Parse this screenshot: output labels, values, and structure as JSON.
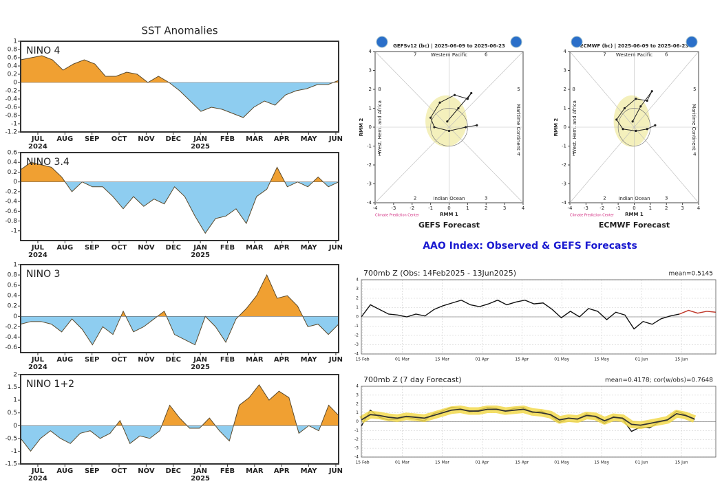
{
  "aao_title": "AAO Index: Observed & GEFS Forecasts",
  "chart_data": [
    {
      "type": "area",
      "title": "SST Anomalies",
      "label": "NINO 4",
      "values": [
        0.55,
        0.6,
        0.65,
        0.55,
        0.3,
        0.45,
        0.55,
        0.45,
        0.15,
        0.15,
        0.25,
        0.2,
        0.0,
        0.15,
        0.0,
        -0.2,
        -0.45,
        -0.7,
        -0.6,
        -0.65,
        -0.75,
        -0.85,
        -0.6,
        -0.45,
        -0.55,
        -0.3,
        -0.2,
        -0.15,
        -0.05,
        -0.05,
        0.05
      ],
      "ylim": [
        -1.2,
        1
      ],
      "yticks": [
        1,
        0.8,
        0.6,
        0.4,
        0.2,
        0,
        -0.2,
        -0.4,
        -0.6,
        -0.8,
        -1,
        -1.2
      ],
      "xticks": [
        "JUL",
        "AUG",
        "SEP",
        "OCT",
        "NOV",
        "DEC",
        "JAN",
        "FEB",
        "MAR",
        "APR",
        "MAY",
        "JUN"
      ],
      "years": [
        "2024",
        "2025"
      ],
      "colors": {
        "positive": "#f0a032",
        "negative": "#8ecdf0"
      }
    },
    {
      "type": "area",
      "label": "NINO 3.4",
      "values": [
        0.25,
        0.4,
        0.35,
        0.3,
        0.1,
        -0.2,
        0,
        -0.1,
        -0.1,
        -0.3,
        -0.55,
        -0.3,
        -0.5,
        -0.35,
        -0.45,
        -0.1,
        -0.3,
        -0.7,
        -1.05,
        -0.75,
        -0.7,
        -0.55,
        -0.85,
        -0.3,
        -0.15,
        0.3,
        -0.1,
        0,
        -0.1,
        0.1,
        -0.1,
        0
      ],
      "ylim": [
        -1.2,
        0.6
      ],
      "yticks": [
        0.6,
        0.4,
        0.2,
        0,
        -0.2,
        -0.4,
        -0.6,
        -0.8,
        -1
      ],
      "xticks": [
        "JUL",
        "AUG",
        "SEP",
        "OCT",
        "NOV",
        "DEC",
        "JAN",
        "FEB",
        "MAR",
        "APR",
        "MAY",
        "JUN"
      ],
      "years": [
        "2024",
        "2025"
      ],
      "colors": {
        "positive": "#f0a032",
        "negative": "#8ecdf0"
      }
    },
    {
      "type": "area",
      "label": "NINO 3",
      "values": [
        -0.15,
        -0.1,
        -0.1,
        -0.15,
        -0.3,
        -0.05,
        -0.25,
        -0.55,
        -0.2,
        -0.35,
        0.1,
        -0.3,
        -0.2,
        -0.05,
        0.1,
        -0.35,
        -0.45,
        -0.55,
        0,
        -0.2,
        -0.5,
        -0.05,
        0.15,
        0.4,
        0.8,
        0.35,
        0.4,
        0.2,
        -0.2,
        -0.15,
        -0.35,
        -0.15
      ],
      "ylim": [
        -0.7,
        1
      ],
      "yticks": [
        1,
        0.8,
        0.6,
        0.4,
        0.2,
        0,
        -0.2,
        -0.4,
        -0.6
      ],
      "xticks": [
        "JUL",
        "AUG",
        "SEP",
        "OCT",
        "NOV",
        "DEC",
        "JAN",
        "FEB",
        "MAR",
        "APR",
        "MAY",
        "JUN"
      ],
      "years": [
        "2024",
        "2025"
      ],
      "colors": {
        "positive": "#f0a032",
        "negative": "#8ecdf0"
      }
    },
    {
      "type": "area",
      "label": "NINO 1+2",
      "values": [
        -0.5,
        -1,
        -0.5,
        -0.2,
        -0.5,
        -0.7,
        -0.3,
        -0.2,
        -0.5,
        -0.3,
        0.2,
        -0.7,
        -0.4,
        -0.5,
        -0.2,
        0.8,
        0.3,
        -0.1,
        -0.1,
        0.3,
        -0.2,
        -0.6,
        0.8,
        1.1,
        1.6,
        1.0,
        1.35,
        1.1,
        -0.3,
        0,
        -0.2,
        0.8,
        0.4
      ],
      "ylim": [
        -1.5,
        2
      ],
      "yticks": [
        2,
        1.5,
        1,
        0.5,
        0,
        -0.5,
        -1,
        -1.5
      ],
      "xticks": [
        "JUL",
        "AUG",
        "SEP",
        "OCT",
        "NOV",
        "DEC",
        "JAN",
        "FEB",
        "MAR",
        "APR",
        "MAY",
        "JUN"
      ],
      "years": [
        "2024",
        "2025"
      ],
      "colors": {
        "positive": "#f0a032",
        "negative": "#8ecdf0"
      }
    },
    {
      "type": "mjo",
      "header": "GEFSv12 (bc) | 2025-06-09 to 2025-06-23",
      "caption": "GEFS Forecast",
      "credit": "Climate Prediction Center",
      "xlabel": "RMM 1",
      "ylabel": "RMM 2",
      "regions": {
        "top": "Western Pacific",
        "bottom": "Indian Ocean",
        "left": "West. Hem. and Africa",
        "right": "Maritime Continent"
      },
      "phases": [
        "1",
        "2",
        "3",
        "4",
        "5",
        "6",
        "7",
        "8"
      ],
      "x": [
        -0.1,
        0.5,
        1.2,
        1.0,
        0.3,
        -0.5,
        -1.0,
        -0.8,
        0,
        0.9,
        1.5
      ],
      "values": [
        0.3,
        1.0,
        1.8,
        1.5,
        1.7,
        1.3,
        0.5,
        0,
        -0.2,
        0,
        0.1
      ],
      "color": "#222222",
      "xlim": [
        -4,
        4
      ],
      "ylim": [
        -4,
        4
      ],
      "xticks": [
        -4,
        -3,
        -2,
        -1,
        0,
        1,
        2,
        3,
        4
      ],
      "yticks": [
        -4,
        -3,
        -2,
        -1,
        0,
        1,
        2,
        3,
        4
      ]
    },
    {
      "type": "mjo",
      "header": "ECMWF (bc) | 2025-06-09 to 2025-06-23",
      "caption": "ECMWF Forecast",
      "credit": "Climate Prediction Center",
      "xlabel": "RMM 1",
      "ylabel": "RMM 2",
      "regions": {
        "top": "Western Pacific",
        "bottom": "Indian Ocean",
        "left": "West. Hem. and Africa",
        "right": "Maritime Continent"
      },
      "phases": [
        "1",
        "2",
        "3",
        "4",
        "5",
        "6",
        "7",
        "8"
      ],
      "x": [
        -0.1,
        0.4,
        1.1,
        0.8,
        0.1,
        -0.6,
        -1.1,
        -0.7,
        0.1,
        0.8,
        1.3
      ],
      "values": [
        0.3,
        1.1,
        1.9,
        1.4,
        1.5,
        1.0,
        0.4,
        -0.1,
        -0.2,
        -0.1,
        0.1
      ],
      "color": "#222222",
      "xlim": [
        -4,
        4
      ],
      "ylim": [
        -4,
        4
      ],
      "xticks": [
        -4,
        -3,
        -2,
        -1,
        0,
        1,
        2,
        3,
        4
      ],
      "yticks": [
        -4,
        -3,
        -2,
        -1,
        0,
        1,
        2,
        3,
        4
      ]
    },
    {
      "type": "line",
      "title": "700mb Z (Obs: 14Feb2025 - 13Jun2025)",
      "stat": "mean=0.5145",
      "xticks": [
        "15 Feb",
        "01 Mar",
        "15 Mar",
        "01 Apr",
        "15 Apr",
        "01 May",
        "15 May",
        "01 Jun",
        "15 Jun"
      ],
      "ylim": [
        -4,
        4
      ],
      "yticks": [
        4,
        3,
        2,
        1,
        0,
        -1,
        -2,
        -3,
        -4
      ],
      "series": [
        {
          "color": "#111111",
          "values": [
            0,
            1.3,
            0.8,
            0.3,
            0.2,
            0,
            0.3,
            0.1,
            0.8,
            1.2,
            1.5,
            1.8,
            1.3,
            1.1,
            1.4,
            1.8,
            1.3,
            1.6,
            1.8,
            1.4,
            1.5,
            0.8,
            -0.1,
            0.6,
            0,
            0.9,
            0.6,
            -0.3,
            0.5,
            0.2,
            -1.3,
            -0.5,
            -0.8,
            -0.2,
            0.1,
            0.3,
            null,
            null,
            null,
            null
          ]
        },
        {
          "color": "#c0392b",
          "values": [
            null,
            null,
            null,
            null,
            null,
            null,
            null,
            null,
            null,
            null,
            null,
            null,
            null,
            null,
            null,
            null,
            null,
            null,
            null,
            null,
            null,
            null,
            null,
            null,
            null,
            null,
            null,
            null,
            null,
            null,
            null,
            null,
            null,
            null,
            null,
            0.3,
            0.7,
            0.4,
            0.6,
            0.5
          ]
        }
      ]
    },
    {
      "type": "line",
      "title": "700mb Z (7 day Forecast)",
      "stat": "mean=0.4178; cor(w/obs)=0.7648",
      "xticks": [
        "15 Feb",
        "01 Mar",
        "15 Mar",
        "01 Apr",
        "15 Apr",
        "01 May",
        "15 May",
        "01 Jun",
        "15 Jun"
      ],
      "ylim": [
        -4,
        4
      ],
      "yticks": [
        4,
        3,
        2,
        1,
        0,
        -1,
        -2,
        -3,
        -4
      ],
      "series": [
        {
          "color": "#111111",
          "values": [
            -0.5,
            1.3,
            0.5,
            0.2,
            0.3,
            0.5,
            0.3,
            0.1,
            0.9,
            1.2,
            1.6,
            1.5,
            1.1,
            1.3,
            1.6,
            1.5,
            1.2,
            1.5,
            1.6,
            1.0,
            1.2,
            0.7,
            -0.1,
            0.4,
            0.2,
            0.9,
            0.5,
            -0.2,
            0.6,
            0.3,
            -1.1,
            -0.6,
            -0.7,
            -0.1,
            0.2,
            1.2,
            0.8,
            0.2
          ]
        },
        {
          "color": "#333333",
          "band": "#f2d94e",
          "values": [
            0.2,
            0.8,
            0.7,
            0.5,
            0.4,
            0.6,
            0.5,
            0.4,
            0.7,
            1.0,
            1.3,
            1.4,
            1.2,
            1.2,
            1.4,
            1.4,
            1.2,
            1.3,
            1.4,
            1.1,
            1.0,
            0.8,
            0.2,
            0.4,
            0.3,
            0.7,
            0.6,
            0.1,
            0.5,
            0.4,
            -0.3,
            -0.4,
            -0.2,
            0.0,
            0.2,
            0.9,
            0.7,
            0.3
          ]
        }
      ]
    }
  ]
}
